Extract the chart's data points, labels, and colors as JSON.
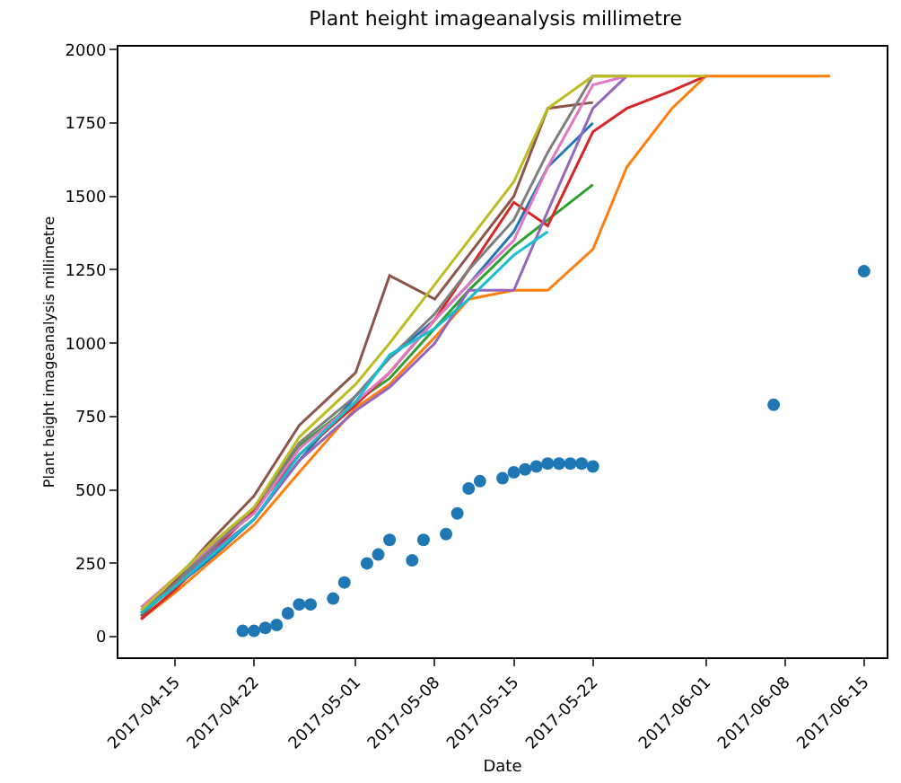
{
  "chart_data": {
    "type": "line",
    "title": "Plant height imageanalysis millimetre",
    "xlabel": "Date",
    "ylabel": "Plant height imageanalysis millimetre",
    "x": [
      "2017-04-12",
      "2017-04-15",
      "2017-04-18",
      "2017-04-22",
      "2017-04-26",
      "2017-05-01",
      "2017-05-04",
      "2017-05-08",
      "2017-05-11",
      "2017-05-15",
      "2017-05-18",
      "2017-05-22",
      "2017-05-25",
      "2017-05-29",
      "2017-06-01",
      "2017-06-05",
      "2017-06-12"
    ],
    "xlim": [
      "2017-04-10",
      "2017-06-17"
    ],
    "xticks": [
      "2017-04-15",
      "2017-04-22",
      "2017-05-01",
      "2017-05-08",
      "2017-05-15",
      "2017-05-22",
      "2017-06-01",
      "2017-06-08",
      "2017-06-15"
    ],
    "ylim": [
      -70,
      2010
    ],
    "yticks": [
      0,
      250,
      500,
      750,
      1000,
      1250,
      1500,
      1750,
      2000
    ],
    "grid": false,
    "marker": "none",
    "line_style": "solid",
    "series": [
      {
        "color": "#1f77b4",
        "values": [
          80,
          170,
          260,
          400,
          600,
          820,
          950,
          1080,
          1200,
          1380,
          1600,
          1750,
          null,
          null,
          null,
          null,
          null
        ]
      },
      {
        "color": "#ff7f0e",
        "values": [
          60,
          150,
          250,
          380,
          560,
          780,
          860,
          1020,
          1150,
          1180,
          1180,
          1320,
          1600,
          1800,
          1910,
          1910,
          1910
        ]
      },
      {
        "color": "#2ca02c",
        "values": [
          70,
          180,
          300,
          420,
          650,
          800,
          880,
          1050,
          1180,
          1330,
          1420,
          1540,
          null,
          null,
          null,
          null,
          null
        ]
      },
      {
        "color": "#d62728",
        "values": [
          60,
          160,
          280,
          430,
          620,
          790,
          900,
          1080,
          1250,
          1480,
          1400,
          1720,
          1800,
          1860,
          1910,
          null,
          null
        ]
      },
      {
        "color": "#9467bd",
        "values": [
          90,
          180,
          280,
          400,
          600,
          770,
          850,
          1000,
          1180,
          1180,
          1450,
          1800,
          1910,
          null,
          null,
          null,
          null
        ]
      },
      {
        "color": "#8c564b",
        "values": [
          70,
          190,
          320,
          480,
          720,
          900,
          1230,
          1150,
          1300,
          1500,
          1800,
          1820,
          null,
          null,
          null,
          null,
          null
        ]
      },
      {
        "color": "#e377c2",
        "values": [
          100,
          200,
          300,
          420,
          640,
          800,
          900,
          1080,
          1200,
          1350,
          1600,
          1880,
          1910,
          null,
          null,
          null,
          null
        ]
      },
      {
        "color": "#7f7f7f",
        "values": [
          80,
          180,
          290,
          440,
          660,
          820,
          950,
          1100,
          1250,
          1420,
          1650,
          1910,
          1910,
          null,
          null,
          null,
          null
        ]
      },
      {
        "color": "#bcbd22",
        "values": [
          90,
          200,
          310,
          440,
          680,
          860,
          1000,
          1200,
          1350,
          1550,
          1800,
          1910,
          1910,
          1910,
          1910,
          null,
          null
        ]
      },
      {
        "color": "#17becf",
        "values": [
          80,
          170,
          270,
          400,
          620,
          800,
          960,
          1050,
          1150,
          1300,
          1380,
          null,
          null,
          null,
          null,
          null,
          null
        ]
      },
      {
        "type": "scatter",
        "marker": "circle",
        "color": "#1f77b4",
        "x": [
          "2017-04-21",
          "2017-04-22",
          "2017-04-23",
          "2017-04-24",
          "2017-04-25",
          "2017-04-26",
          "2017-04-27",
          "2017-04-29",
          "2017-04-30",
          "2017-05-02",
          "2017-05-03",
          "2017-05-04",
          "2017-05-06",
          "2017-05-07",
          "2017-05-09",
          "2017-05-10",
          "2017-05-11",
          "2017-05-12",
          "2017-05-14",
          "2017-05-15",
          "2017-05-16",
          "2017-05-17",
          "2017-05-18",
          "2017-05-19",
          "2017-05-20",
          "2017-05-21",
          "2017-05-22",
          "2017-06-07",
          "2017-06-15"
        ],
        "values": [
          20,
          20,
          30,
          40,
          80,
          110,
          110,
          130,
          185,
          250,
          280,
          330,
          260,
          330,
          350,
          420,
          505,
          530,
          540,
          560,
          570,
          580,
          590,
          590,
          590,
          590,
          580,
          790,
          1245
        ]
      }
    ]
  }
}
